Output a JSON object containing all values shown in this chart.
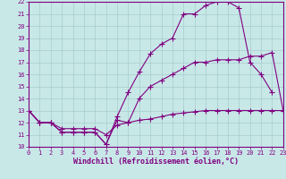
{
  "bg_color": "#c8e8e8",
  "grid_color": "#a8cccc",
  "line_color": "#800080",
  "x_min": 0,
  "x_max": 23,
  "y_min": 10,
  "y_max": 22,
  "xlabel": "Windchill (Refroidissement éolien,°C)",
  "line1_x": [
    0,
    1,
    2,
    3,
    4,
    5,
    6,
    7,
    8,
    9,
    10,
    11,
    12,
    13,
    14,
    15,
    16,
    17,
    18,
    19,
    20,
    21,
    22,
    23
  ],
  "line1_y": [
    13.0,
    12.0,
    12.0,
    11.2,
    11.2,
    11.2,
    11.2,
    10.2,
    12.2,
    12.0,
    14.0,
    15.0,
    15.5,
    16.0,
    16.5,
    17.0,
    17.0,
    17.2,
    17.2,
    17.2,
    17.5,
    17.5,
    17.8,
    13.0
  ],
  "line2_x": [
    0,
    1,
    2,
    3,
    4,
    5,
    6,
    7,
    8,
    9,
    10,
    11,
    12,
    13,
    14,
    15,
    16,
    17,
    18,
    19,
    20,
    21,
    22
  ],
  "line2_y": [
    13.0,
    12.0,
    12.0,
    11.2,
    11.2,
    11.2,
    11.2,
    10.2,
    12.5,
    14.5,
    16.2,
    17.7,
    18.5,
    19.0,
    21.0,
    21.0,
    21.7,
    22.0,
    22.0,
    21.5,
    17.0,
    16.0,
    14.5
  ],
  "line3_x": [
    0,
    1,
    2,
    3,
    4,
    5,
    6,
    7,
    8,
    9,
    10,
    11,
    12,
    13,
    14,
    15,
    16,
    17,
    18,
    19,
    20,
    21,
    22,
    23
  ],
  "line3_y": [
    13.0,
    12.0,
    12.0,
    11.5,
    11.5,
    11.5,
    11.5,
    11.0,
    11.8,
    12.0,
    12.2,
    12.3,
    12.5,
    12.7,
    12.8,
    12.9,
    13.0,
    13.0,
    13.0,
    13.0,
    13.0,
    13.0,
    13.0,
    13.0
  ],
  "marker": "+",
  "markersize": 4.0,
  "linewidth": 0.8,
  "tick_fontsize": 5.0,
  "xlabel_fontsize": 6.0
}
